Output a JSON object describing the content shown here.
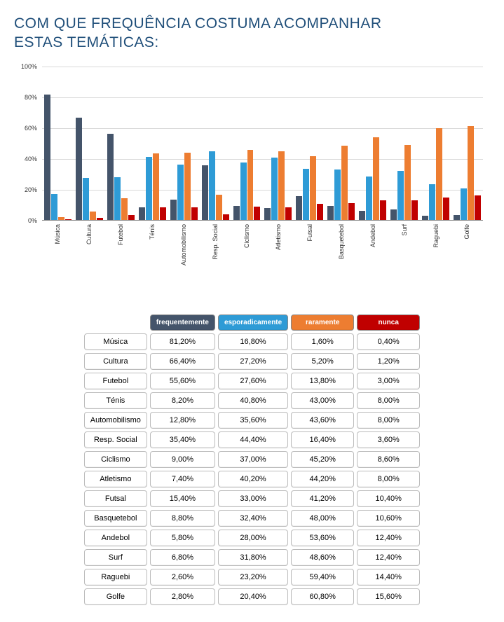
{
  "title_line1": "COM QUE FREQUÊNCIA COSTUMA ACOMPANHAR",
  "title_line2": "ESTAS TEMÁTICAS:",
  "chart": {
    "type": "bar-grouped",
    "ylim": [
      0,
      100
    ],
    "ytick_step": 20,
    "ytick_suffix": "%",
    "grid_color": "#d9d9d9",
    "background_color": "#ffffff",
    "series": [
      {
        "key": "frequentemente",
        "label": "frequentemente",
        "color": "#44546a"
      },
      {
        "key": "esporadicamente",
        "label": "esporadicamente",
        "color": "#2e9bd6"
      },
      {
        "key": "raramente",
        "label": "raramente",
        "color": "#ed7d31"
      },
      {
        "key": "nunca",
        "label": "nunca",
        "color": "#c00000"
      }
    ],
    "categories": [
      {
        "label": "Música",
        "values": [
          81.2,
          16.8,
          1.6,
          0.4
        ]
      },
      {
        "label": "Cultura",
        "values": [
          66.4,
          27.2,
          5.2,
          1.2
        ]
      },
      {
        "label": "Futebol",
        "values": [
          55.6,
          27.6,
          13.8,
          3.0
        ]
      },
      {
        "label": "Ténis",
        "values": [
          8.2,
          40.8,
          43.0,
          8.0
        ]
      },
      {
        "label": "Automobilismo",
        "values": [
          12.8,
          35.6,
          43.6,
          8.0
        ]
      },
      {
        "label": "Resp. Social",
        "values": [
          35.4,
          44.4,
          16.4,
          3.6
        ]
      },
      {
        "label": "Ciclismo",
        "values": [
          9.0,
          37.0,
          45.2,
          8.6
        ]
      },
      {
        "label": "Atletismo",
        "values": [
          7.4,
          40.2,
          44.2,
          8.0
        ]
      },
      {
        "label": "Futsal",
        "values": [
          15.4,
          33.0,
          41.2,
          10.4
        ]
      },
      {
        "label": "Basquetebol",
        "values": [
          8.8,
          32.4,
          48.0,
          10.6
        ]
      },
      {
        "label": "Andebol",
        "values": [
          5.8,
          28.0,
          53.6,
          12.4
        ]
      },
      {
        "label": "Surf",
        "values": [
          6.8,
          31.8,
          48.6,
          12.4
        ]
      },
      {
        "label": "Raguebi",
        "values": [
          2.6,
          23.2,
          59.4,
          14.4
        ]
      },
      {
        "label": "Golfe",
        "values": [
          2.8,
          20.4,
          60.8,
          15.6
        ]
      }
    ]
  },
  "table": {
    "decimal_sep": ",",
    "percent_suffix": "%",
    "decimals": 2
  }
}
